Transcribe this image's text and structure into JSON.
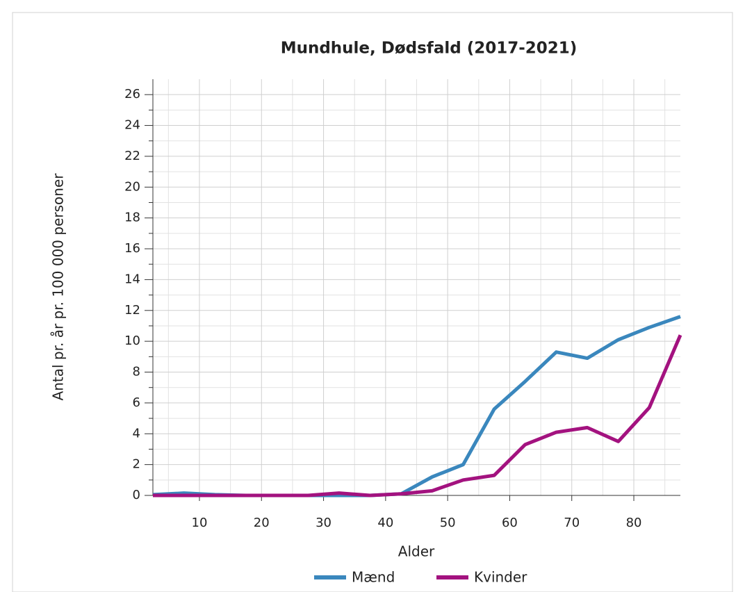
{
  "chart_data": {
    "type": "line",
    "title": "Mundhule, Dødsfald (2017-2021)",
    "x_label": "Alder",
    "y_label": "Antal pr. år pr. 100 000 personer",
    "x": [
      2.5,
      7.5,
      12.5,
      17.5,
      22.5,
      27.5,
      32.5,
      37.5,
      42.5,
      47.5,
      52.5,
      57.5,
      62.5,
      67.5,
      72.5,
      77.5,
      82.5,
      87.5
    ],
    "series": [
      {
        "name": "Mænd",
        "color": "#3a87bd",
        "values": [
          0.05,
          0.15,
          0.05,
          0,
          0,
          0,
          0,
          0,
          0.1,
          1.2,
          2.0,
          5.6,
          7.4,
          9.3,
          8.9,
          10.1,
          10.9,
          11.6
        ]
      },
      {
        "name": "Kvinder",
        "color": "#a3127f",
        "values": [
          0,
          0,
          0,
          0,
          0,
          0,
          0.15,
          0,
          0.1,
          0.3,
          1.0,
          1.3,
          3.3,
          4.1,
          4.4,
          3.5,
          5.7,
          10.4
        ]
      }
    ],
    "xlim": [
      2.5,
      87.5
    ],
    "xticks": [
      10,
      20,
      30,
      40,
      50,
      60,
      70,
      80
    ],
    "xticks_minor": [
      5,
      15,
      25,
      35,
      45,
      55,
      65,
      75,
      85
    ],
    "ylim": [
      0,
      27
    ],
    "yticks": [
      0,
      2,
      4,
      6,
      8,
      10,
      12,
      14,
      16,
      18,
      20,
      22,
      24,
      26
    ],
    "yticks_minor": [
      1,
      3,
      5,
      7,
      9,
      11,
      13,
      15,
      17,
      19,
      21,
      23,
      25
    ],
    "grid": true,
    "legend": "bottom"
  }
}
